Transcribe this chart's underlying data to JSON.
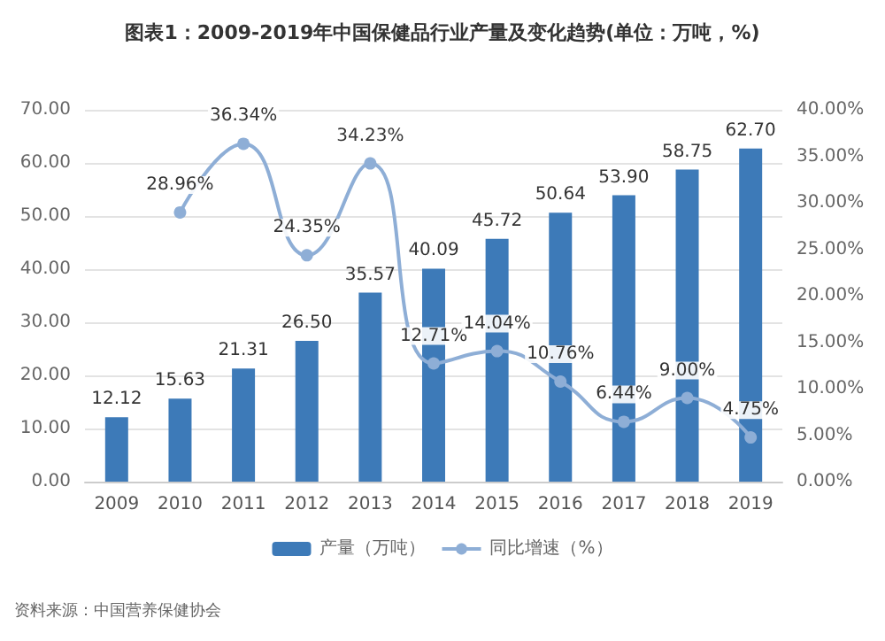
{
  "chart_data": {
    "type": "bar",
    "title": "图表1：2009-2019年中国保健品行业产量及变化趋势(单位：万吨，%)",
    "categories": [
      "2009",
      "2010",
      "2011",
      "2012",
      "2013",
      "2014",
      "2015",
      "2016",
      "2017",
      "2018",
      "2019"
    ],
    "series": [
      {
        "name": "产量（万吨）",
        "color": "#3d7ab8",
        "values": [
          12.12,
          15.63,
          21.31,
          26.5,
          35.57,
          40.09,
          45.72,
          50.64,
          53.9,
          58.75,
          62.7
        ],
        "value_labels": [
          "12.12",
          "15.63",
          "21.31",
          "26.50",
          "35.57",
          "40.09",
          "45.72",
          "50.64",
          "53.90",
          "58.75",
          "62.70"
        ]
      },
      {
        "name": "同比增速（%）",
        "type": "line",
        "axis": "y2",
        "color": "#8eaed6",
        "marker": "circle",
        "values": [
          null,
          28.96,
          36.34,
          24.35,
          34.23,
          12.71,
          14.04,
          10.76,
          6.44,
          9.0,
          4.75
        ],
        "value_labels": [
          null,
          "28.96%",
          "36.34%",
          "24.35%",
          "34.23%",
          "12.71%",
          "14.04%",
          "10.76%",
          "6.44%",
          "9.00%",
          "4.75%"
        ]
      }
    ],
    "ylim": [
      0,
      70
    ],
    "yticks": [
      {
        "value": 0,
        "label": "0.00"
      },
      {
        "value": 10,
        "label": "10.00"
      },
      {
        "value": 20,
        "label": "20.00"
      },
      {
        "value": 30,
        "label": "30.00"
      },
      {
        "value": 40,
        "label": "40.00"
      },
      {
        "value": 50,
        "label": "50.00"
      },
      {
        "value": 60,
        "label": "60.00"
      },
      {
        "value": 70,
        "label": "70.00"
      }
    ],
    "y2lim": [
      0,
      40
    ],
    "y2ticks": [
      {
        "value": 0,
        "label": "0.00%"
      },
      {
        "value": 5,
        "label": "5.00%"
      },
      {
        "value": 10,
        "label": "10.00%"
      },
      {
        "value": 15,
        "label": "15.00%"
      },
      {
        "value": 20,
        "label": "20.00%"
      },
      {
        "value": 25,
        "label": "25.00%"
      },
      {
        "value": 30,
        "label": "30.00%"
      },
      {
        "value": 35,
        "label": "35.00%"
      },
      {
        "value": 40,
        "label": "40.00%"
      }
    ],
    "grid": "y",
    "legend": "bottom",
    "annotations": [
      "资料来源：中国营养保健协会"
    ]
  }
}
